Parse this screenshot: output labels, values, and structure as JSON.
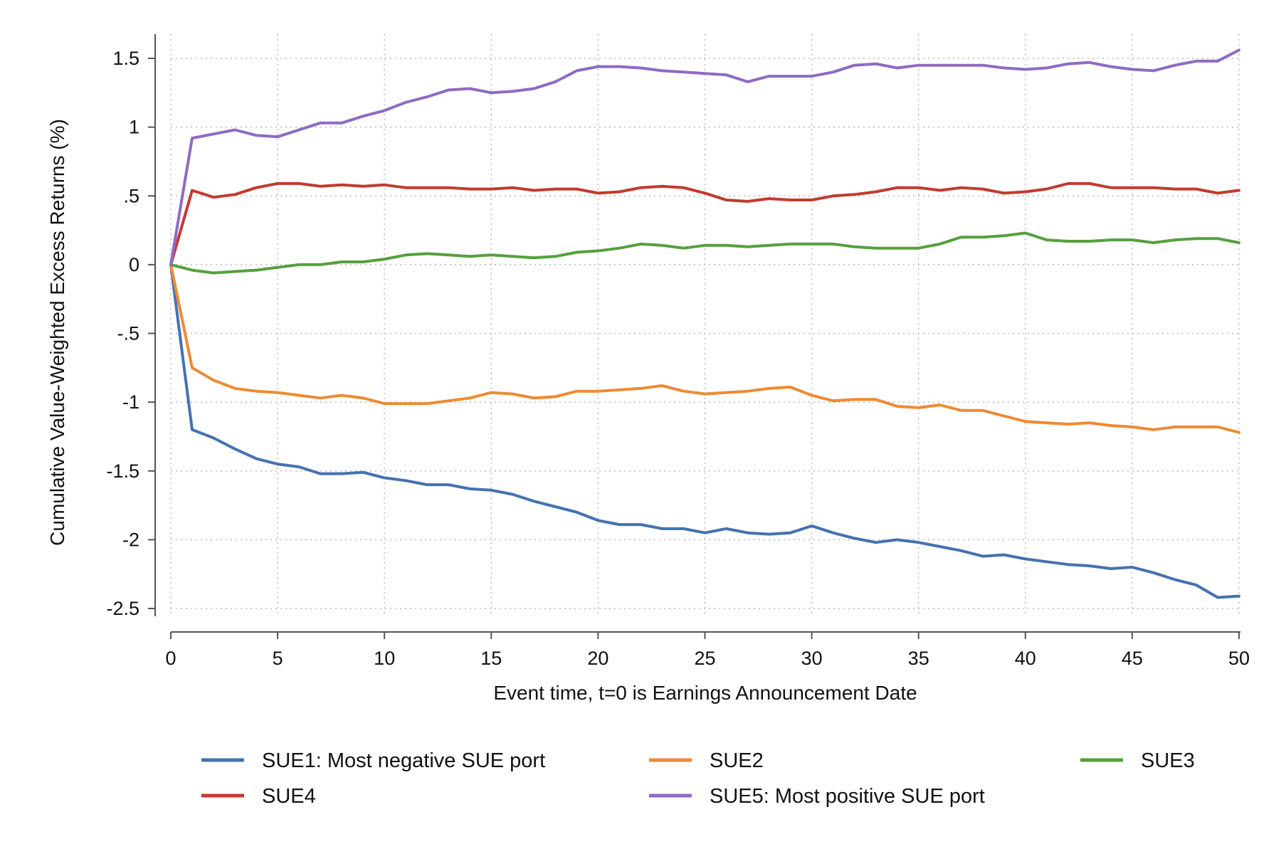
{
  "chart_data": {
    "type": "line",
    "title": "",
    "xlabel": "Event time, t=0 is Earnings Announcement Date",
    "ylabel": "Cumulative Value-Weighted Excess Returns (%)",
    "xlim": [
      0,
      50
    ],
    "ylim": [
      -2.5,
      1.5
    ],
    "x_ticks": [
      0,
      5,
      10,
      15,
      20,
      25,
      30,
      35,
      40,
      45,
      50
    ],
    "x_tick_labels": [
      "0",
      "5",
      "10",
      "15",
      "20",
      "25",
      "30",
      "35",
      "40",
      "45",
      "50"
    ],
    "y_ticks": [
      -2.5,
      -2,
      -1.5,
      -1,
      -0.5,
      0,
      0.5,
      1,
      1.5
    ],
    "y_tick_labels": [
      "-2.5",
      "-2",
      "-1.5",
      "-1",
      "-.5",
      "0",
      ".5",
      "1",
      "1.5"
    ],
    "grid": true,
    "legend_position": "bottom",
    "x": [
      0,
      1,
      2,
      3,
      4,
      5,
      6,
      7,
      8,
      9,
      10,
      11,
      12,
      13,
      14,
      15,
      16,
      17,
      18,
      19,
      20,
      21,
      22,
      23,
      24,
      25,
      26,
      27,
      28,
      29,
      30,
      31,
      32,
      33,
      34,
      35,
      36,
      37,
      38,
      39,
      40,
      41,
      42,
      43,
      44,
      45,
      46,
      47,
      48,
      49,
      50
    ],
    "series": [
      {
        "name": "SUE1: Most negative SUE port",
        "color": "#4472b0",
        "values": [
          0,
          -1.2,
          -1.26,
          -1.34,
          -1.41,
          -1.45,
          -1.47,
          -1.52,
          -1.52,
          -1.51,
          -1.55,
          -1.57,
          -1.6,
          -1.6,
          -1.63,
          -1.64,
          -1.67,
          -1.72,
          -1.76,
          -1.8,
          -1.86,
          -1.89,
          -1.89,
          -1.92,
          -1.92,
          -1.95,
          -1.92,
          -1.95,
          -1.96,
          -1.95,
          -1.9,
          -1.95,
          -1.99,
          -2.02,
          -2.0,
          -2.02,
          -2.05,
          -2.08,
          -2.12,
          -2.11,
          -2.14,
          -2.16,
          -2.18,
          -2.19,
          -2.21,
          -2.2,
          -2.24,
          -2.29,
          -2.33,
          -2.42,
          -2.41
        ]
      },
      {
        "name": "SUE2",
        "color": "#ee8a33",
        "values": [
          0,
          -0.75,
          -0.84,
          -0.9,
          -0.92,
          -0.93,
          -0.95,
          -0.97,
          -0.95,
          -0.97,
          -1.01,
          -1.01,
          -1.01,
          -0.99,
          -0.97,
          -0.93,
          -0.94,
          -0.97,
          -0.96,
          -0.92,
          -0.92,
          -0.91,
          -0.9,
          -0.88,
          -0.92,
          -0.94,
          -0.93,
          -0.92,
          -0.9,
          -0.89,
          -0.95,
          -0.99,
          -0.98,
          -0.98,
          -1.03,
          -1.04,
          -1.02,
          -1.06,
          -1.06,
          -1.1,
          -1.14,
          -1.15,
          -1.16,
          -1.15,
          -1.17,
          -1.18,
          -1.2,
          -1.18,
          -1.18,
          -1.18,
          -1.22
        ]
      },
      {
        "name": "SUE3",
        "color": "#55a03e",
        "values": [
          0,
          -0.04,
          -0.06,
          -0.05,
          -0.04,
          -0.02,
          0.0,
          0.0,
          0.02,
          0.02,
          0.04,
          0.07,
          0.08,
          0.07,
          0.06,
          0.07,
          0.06,
          0.05,
          0.06,
          0.09,
          0.1,
          0.12,
          0.15,
          0.14,
          0.12,
          0.14,
          0.14,
          0.13,
          0.14,
          0.15,
          0.15,
          0.15,
          0.13,
          0.12,
          0.12,
          0.12,
          0.15,
          0.2,
          0.2,
          0.21,
          0.23,
          0.18,
          0.17,
          0.17,
          0.18,
          0.18,
          0.16,
          0.18,
          0.19,
          0.19,
          0.16
        ]
      },
      {
        "name": "SUE4",
        "color": "#c23a2f",
        "values": [
          0,
          0.54,
          0.49,
          0.51,
          0.56,
          0.59,
          0.59,
          0.57,
          0.58,
          0.57,
          0.58,
          0.56,
          0.56,
          0.56,
          0.55,
          0.55,
          0.56,
          0.54,
          0.55,
          0.55,
          0.52,
          0.53,
          0.56,
          0.57,
          0.56,
          0.52,
          0.47,
          0.46,
          0.48,
          0.47,
          0.47,
          0.5,
          0.51,
          0.53,
          0.56,
          0.56,
          0.54,
          0.56,
          0.55,
          0.52,
          0.53,
          0.55,
          0.59,
          0.59,
          0.56,
          0.56,
          0.56,
          0.55,
          0.55,
          0.52,
          0.54
        ]
      },
      {
        "name": "SUE5: Most positive SUE port",
        "color": "#8f6ac4",
        "values": [
          0,
          0.92,
          0.95,
          0.98,
          0.94,
          0.93,
          0.98,
          1.03,
          1.03,
          1.08,
          1.12,
          1.18,
          1.22,
          1.27,
          1.28,
          1.25,
          1.26,
          1.28,
          1.33,
          1.41,
          1.44,
          1.44,
          1.43,
          1.41,
          1.4,
          1.39,
          1.38,
          1.33,
          1.37,
          1.37,
          1.37,
          1.4,
          1.45,
          1.46,
          1.43,
          1.45,
          1.45,
          1.45,
          1.45,
          1.43,
          1.42,
          1.43,
          1.46,
          1.47,
          1.44,
          1.42,
          1.41,
          1.45,
          1.48,
          1.48,
          1.56
        ]
      }
    ],
    "legend_layout": [
      [
        0,
        1,
        2
      ],
      [
        3,
        4
      ]
    ]
  }
}
